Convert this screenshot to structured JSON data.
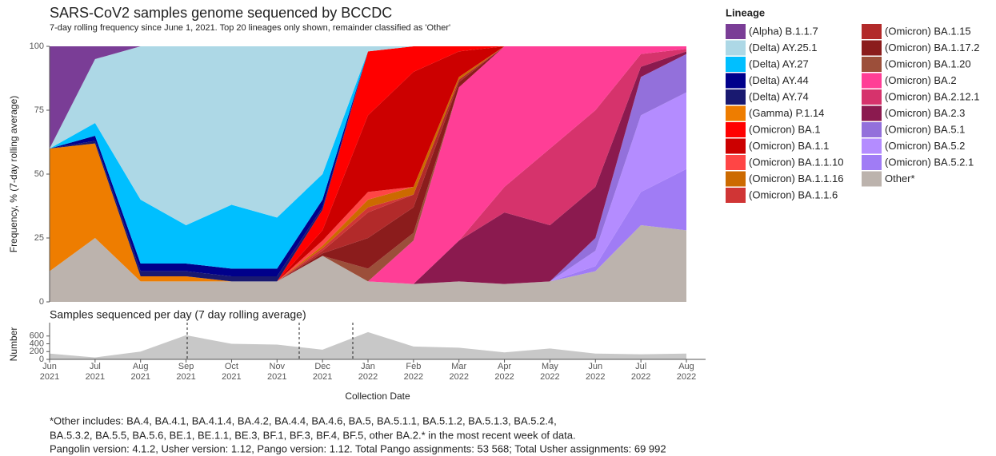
{
  "chart_data": [
    {
      "type": "stacked-area",
      "title": "SARS-CoV2 samples genome sequenced by BCCDC",
      "subtitle": "7-day rolling frequency since June 1, 2021.  Top 20 lineages only shown, remainder classified as 'Other'",
      "y_label": "Frequency, % (7-day rolling average)",
      "legend_title": "Lineage",
      "x": [
        "2021-06",
        "2021-07",
        "2021-08",
        "2021-09",
        "2021-10",
        "2021-11",
        "2021-12",
        "2022-01",
        "2022-02",
        "2022-03",
        "2022-04",
        "2022-05",
        "2022-06",
        "2022-07",
        "2022-08"
      ],
      "xlim": [
        "2021-06",
        "2022-08"
      ],
      "ylim": [
        0,
        100
      ],
      "yticks": [
        0,
        25,
        50,
        75,
        100
      ],
      "series": [
        {
          "name": "(Alpha) B.1.1.7",
          "color": "#7a3d96",
          "values": [
            40,
            5,
            0,
            0,
            0,
            0,
            0,
            0,
            0,
            0,
            0,
            0,
            0,
            0,
            0
          ]
        },
        {
          "name": "(Delta) AY.25.1",
          "color": "#add8e6",
          "values": [
            0,
            25,
            60,
            70,
            62,
            67,
            50,
            2,
            0,
            0,
            0,
            0,
            0,
            0,
            0
          ]
        },
        {
          "name": "(Delta) AY.27",
          "color": "#00bfff",
          "values": [
            0,
            5,
            25,
            15,
            25,
            20,
            10,
            0,
            0,
            0,
            0,
            0,
            0,
            0,
            0
          ]
        },
        {
          "name": "(Delta) AY.44",
          "color": "#00008b",
          "values": [
            0,
            2,
            3,
            3,
            3,
            3,
            3,
            0,
            0,
            0,
            0,
            0,
            0,
            0,
            0
          ]
        },
        {
          "name": "(Delta) AY.74",
          "color": "#191970",
          "values": [
            0,
            1,
            2,
            2,
            2,
            2,
            1,
            0,
            0,
            0,
            0,
            0,
            0,
            0,
            0
          ]
        },
        {
          "name": "(Gamma) P.1.14",
          "color": "#ee7d00",
          "values": [
            48,
            37,
            2,
            2,
            0,
            0,
            0,
            0,
            0,
            0,
            0,
            0,
            0,
            0,
            0
          ]
        },
        {
          "name": "(Omicron) BA.1",
          "color": "#ff0000",
          "values": [
            0,
            0,
            0,
            0,
            0,
            0,
            8,
            25,
            10,
            2,
            0,
            0,
            0,
            0,
            0
          ]
        },
        {
          "name": "(Omicron) BA.1.1",
          "color": "#cc0000",
          "values": [
            0,
            0,
            0,
            0,
            0,
            0,
            4,
            30,
            45,
            10,
            0,
            0,
            0,
            0,
            0
          ]
        },
        {
          "name": "(Omicron) BA.1.1.10",
          "color": "#ff4545",
          "values": [
            0,
            0,
            0,
            0,
            0,
            0,
            2,
            3,
            0,
            0,
            0,
            0,
            0,
            0,
            0
          ]
        },
        {
          "name": "(Omicron) BA.1.1.16",
          "color": "#cc6a00",
          "values": [
            0,
            0,
            0,
            0,
            0,
            0,
            1,
            3,
            3,
            1,
            0,
            0,
            0,
            0,
            0
          ]
        },
        {
          "name": "(Omicron) BA.1.1.6",
          "color": "#d03535",
          "values": [
            0,
            0,
            0,
            0,
            0,
            0,
            1,
            2,
            0,
            0,
            0,
            0,
            0,
            0,
            0
          ]
        },
        {
          "name": "(Omicron) BA.1.15",
          "color": "#b22a2a",
          "values": [
            0,
            0,
            0,
            0,
            0,
            0,
            1,
            10,
            5,
            1,
            0,
            0,
            0,
            0,
            0
          ]
        },
        {
          "name": "(Omicron) BA.1.17.2",
          "color": "#8b1c1c",
          "values": [
            0,
            0,
            0,
            0,
            0,
            0,
            1,
            12,
            10,
            2,
            0,
            0,
            0,
            0,
            0
          ]
        },
        {
          "name": "(Omicron) BA.1.20",
          "color": "#9c4f3a",
          "values": [
            0,
            0,
            0,
            0,
            0,
            0,
            0,
            5,
            3,
            0,
            0,
            0,
            0,
            0,
            0
          ]
        },
        {
          "name": "(Omicron) BA.2",
          "color": "#ff3e96",
          "values": [
            0,
            0,
            0,
            0,
            0,
            0,
            0,
            0,
            17,
            60,
            55,
            40,
            25,
            3,
            1
          ]
        },
        {
          "name": "(Omicron) BA.2.12.1",
          "color": "#d6336c",
          "values": [
            0,
            0,
            0,
            0,
            0,
            0,
            0,
            0,
            0,
            0,
            10,
            30,
            30,
            5,
            1
          ]
        },
        {
          "name": "(Omicron) BA.2.3",
          "color": "#8b1a4f",
          "values": [
            0,
            0,
            0,
            0,
            0,
            0,
            0,
            0,
            0,
            16,
            28,
            22,
            20,
            4,
            1
          ]
        },
        {
          "name": "(Omicron) BA.5.1",
          "color": "#9370db",
          "values": [
            0,
            0,
            0,
            0,
            0,
            0,
            0,
            0,
            0,
            0,
            0,
            0,
            5,
            15,
            15
          ]
        },
        {
          "name": "(Omicron) BA.5.2",
          "color": "#b48cff",
          "values": [
            0,
            0,
            0,
            0,
            0,
            0,
            0,
            0,
            0,
            0,
            0,
            0,
            6,
            30,
            30
          ]
        },
        {
          "name": "(Omicron) BA.5.2.1",
          "color": "#a07cf5",
          "values": [
            0,
            0,
            0,
            0,
            0,
            0,
            0,
            0,
            0,
            0,
            0,
            0,
            2,
            13,
            24
          ]
        },
        {
          "name": "Other*",
          "color": "#bcb3ad",
          "values": [
            12,
            25,
            8,
            8,
            8,
            8,
            18,
            8,
            7,
            8,
            7,
            8,
            12,
            30,
            28
          ]
        }
      ]
    },
    {
      "type": "area",
      "title": "Samples sequenced per day (7 day rolling average)",
      "y_label": "Number",
      "x_label": "Collection Date",
      "color": "#c8c8c8",
      "x": [
        "2021-06",
        "2021-07",
        "2021-08",
        "2021-09",
        "2021-10",
        "2021-11",
        "2021-12",
        "2022-01",
        "2022-02",
        "2022-03",
        "2022-04",
        "2022-05",
        "2022-06",
        "2022-07",
        "2022-08"
      ],
      "values": [
        150,
        50,
        200,
        620,
        400,
        380,
        250,
        700,
        330,
        300,
        180,
        280,
        150,
        130,
        150
      ],
      "xlim": [
        "2021-06",
        "2022-08"
      ],
      "ylim": [
        0,
        780
      ],
      "yticks": [
        0,
        200,
        400,
        600
      ],
      "xticks": [
        {
          "value": "2021-06",
          "label": "Jun 2021"
        },
        {
          "value": "2021-07",
          "label": "Jul 2021"
        },
        {
          "value": "2021-08",
          "label": "Aug 2021"
        },
        {
          "value": "2021-09",
          "label": "Sep 2021"
        },
        {
          "value": "2021-10",
          "label": "Oct 2021"
        },
        {
          "value": "2021-11",
          "label": "Nov 2021"
        },
        {
          "value": "2021-12",
          "label": "Dec 2021"
        },
        {
          "value": "2022-01",
          "label": "Jan 2022"
        },
        {
          "value": "2022-02",
          "label": "Feb 2022"
        },
        {
          "value": "2022-03",
          "label": "Mar 2022"
        },
        {
          "value": "2022-04",
          "label": "Apr 2022"
        },
        {
          "value": "2022-05",
          "label": "May 2022"
        },
        {
          "value": "2022-06",
          "label": "Jun 2022"
        },
        {
          "value": "2022-07",
          "label": "Jul 2022"
        },
        {
          "value": "2022-08",
          "label": "Aug 2022"
        }
      ]
    }
  ],
  "footnote": [
    "*Other includes: BA.4, BA.4.1, BA.4.1.4, BA.4.2, BA.4.4, BA.4.6, BA.5, BA.5.1.1, BA.5.1.2, BA.5.1.3, BA.5.2.4,",
    "BA.5.3.2, BA.5.5, BA.5.6, BE.1, BE.1.1, BE.3, BF.1, BF.3, BF.4, BF.5, other BA.2.* in the most recent week of data.",
    "Pangolin version: 4.1.2, Usher version: 1.12, Pango version: 1.12. Total Pango assignments: 53 568; Total Usher assignments: 69 992"
  ]
}
